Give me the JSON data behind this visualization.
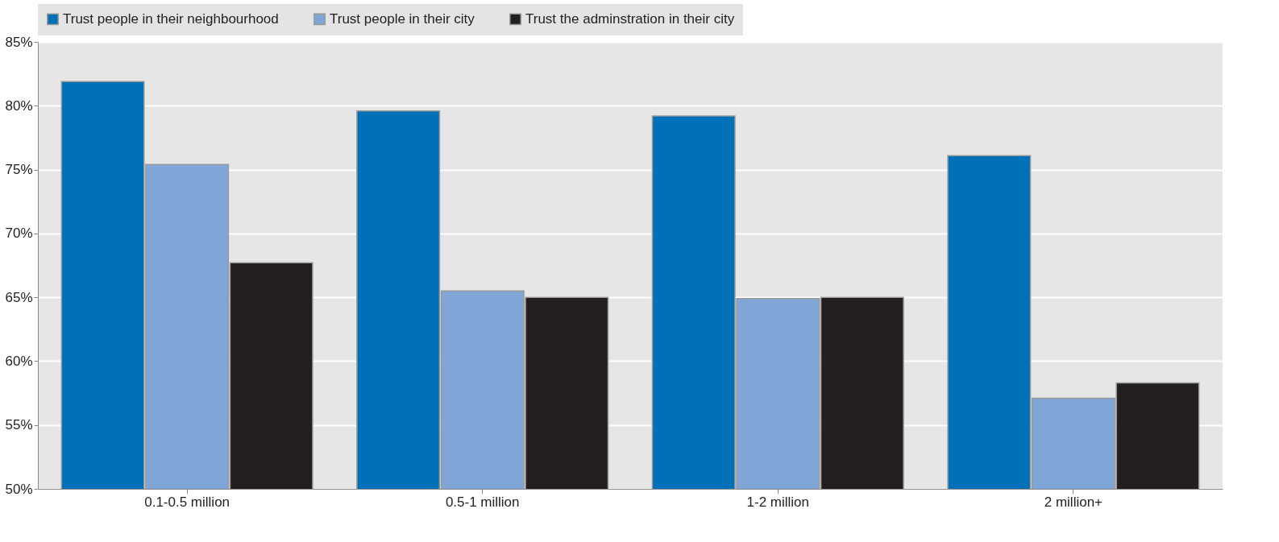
{
  "chart_data": {
    "type": "bar",
    "categories": [
      "0.1-0.5 million",
      "0.5-1 million",
      "1-2 million",
      "2 million+"
    ],
    "series": [
      {
        "name": "Trust people in their neighbourhood",
        "color": "#0070b8",
        "values": [
          81.9,
          79.6,
          79.2,
          76.1
        ]
      },
      {
        "name": "Trust people in their city",
        "color": "#7fa6d6",
        "values": [
          75.4,
          65.5,
          64.9,
          57.1
        ]
      },
      {
        "name": "Trust the adminstration in their city",
        "color": "#231f20",
        "values": [
          67.7,
          65.0,
          65.0,
          58.3
        ]
      }
    ],
    "ylim": [
      50,
      85
    ],
    "yticks": [
      {
        "value": 50,
        "label": "50%"
      },
      {
        "value": 55,
        "label": "55%"
      },
      {
        "value": 60,
        "label": "60%"
      },
      {
        "value": 65,
        "label": "65%"
      },
      {
        "value": 70,
        "label": "70%"
      },
      {
        "value": 75,
        "label": "75%"
      },
      {
        "value": 80,
        "label": "80%"
      },
      {
        "value": 85,
        "label": "85%"
      }
    ],
    "grid": "y",
    "legend": "top"
  }
}
